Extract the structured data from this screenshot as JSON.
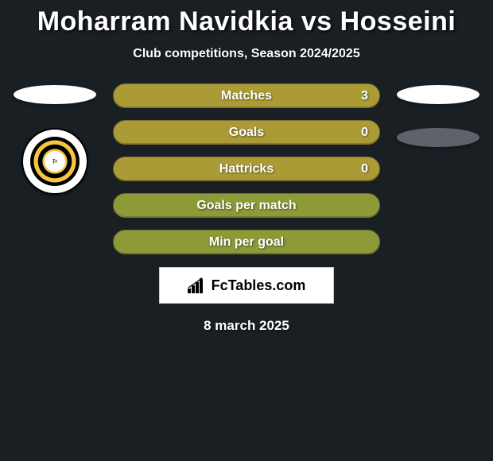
{
  "header": {
    "title": "Moharram Navidkia vs Hosseini",
    "subtitle": "Club competitions, Season 2024/2025"
  },
  "colors": {
    "background": "#1a1f24",
    "bar_player_fill": "#aa9b36",
    "bar_average_fill": "#8d9a37",
    "text": "#ffffff",
    "brand_bg": "#ffffff"
  },
  "sides": {
    "left": {
      "ellipse_color": "#ffffff",
      "club_logo_label": "Sepahan"
    },
    "right": {
      "top_ellipse_color": "#ffffff",
      "bottom_ellipse_color": "#5e636a"
    }
  },
  "stats": [
    {
      "label": "Matches",
      "value": "3",
      "fill_pct": 100,
      "style": "full"
    },
    {
      "label": "Goals",
      "value": "0",
      "fill_pct": 100,
      "style": "full"
    },
    {
      "label": "Hattricks",
      "value": "0",
      "fill_pct": 100,
      "style": "full"
    },
    {
      "label": "Goals per match",
      "value": "",
      "fill_pct": 100,
      "style": "half-olive"
    },
    {
      "label": "Min per goal",
      "value": "",
      "fill_pct": 100,
      "style": "half-olive"
    }
  ],
  "brand": {
    "text": "FcTables.com"
  },
  "date": "8 march 2025",
  "typography": {
    "title_fontsize": 34,
    "subtitle_fontsize": 16,
    "bar_label_fontsize": 16,
    "date_fontsize": 17
  }
}
